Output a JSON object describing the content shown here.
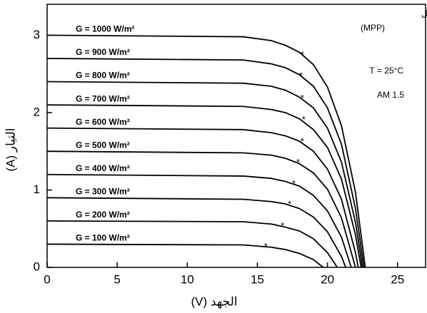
{
  "chart_data": {
    "type": "line",
    "x_label": "الجهد (V)",
    "y_label": "التيار (A)",
    "xlim": [
      0,
      27
    ],
    "ylim": [
      0,
      3.4
    ],
    "xticks": [
      0,
      5,
      10,
      15,
      20,
      25
    ],
    "yticks": [
      0,
      1,
      2,
      3
    ],
    "color": "#000000",
    "annotations": [
      "* نقاط القدرة القصوى للتشغيل",
      "(MPP)",
      "T = 25°C",
      "AM 1.5"
    ],
    "series": [
      {
        "name": "G = 1000 W/m²",
        "x": [
          0,
          14,
          16,
          17,
          18,
          19,
          20,
          21,
          22,
          22.7
        ],
        "values": [
          3,
          2.98,
          2.93,
          2.87,
          2.78,
          2.62,
          2.33,
          1.83,
          0.97,
          0
        ],
        "mpp_x": 18.2,
        "mpp_y": 2.75
      },
      {
        "name": "G = 900 W/m²",
        "x": [
          0,
          14,
          16,
          17,
          18,
          19,
          20,
          21,
          22,
          22.6
        ],
        "values": [
          2.7,
          2.68,
          2.63,
          2.58,
          2.49,
          2.34,
          2.06,
          1.59,
          0.76,
          0
        ],
        "mpp_x": 18.1,
        "mpp_y": 2.48
      },
      {
        "name": "G = 800 W/m²",
        "x": [
          0,
          14,
          16,
          17,
          18,
          19,
          20,
          21,
          22,
          22.5
        ],
        "values": [
          2.4,
          2.38,
          2.34,
          2.29,
          2.2,
          2.06,
          1.8,
          1.36,
          0.58,
          0
        ],
        "mpp_x": 18.2,
        "mpp_y": 2.19
      },
      {
        "name": "G = 700 W/m²",
        "x": [
          0,
          14,
          16,
          17,
          18,
          19,
          20,
          21,
          22,
          22.4
        ],
        "values": [
          2.1,
          2.08,
          2.04,
          2,
          1.92,
          1.78,
          1.55,
          1.14,
          0.42,
          0
        ],
        "mpp_x": 18.3,
        "mpp_y": 1.91
      },
      {
        "name": "G = 600 W/m²",
        "x": [
          0,
          14,
          16,
          17,
          18,
          19,
          20,
          21,
          22,
          22.2
        ],
        "values": [
          1.8,
          1.78,
          1.74,
          1.7,
          1.63,
          1.5,
          1.27,
          0.88,
          0.19,
          0
        ],
        "mpp_x": 18.2,
        "mpp_y": 1.63
      },
      {
        "name": "G = 500 W/m²",
        "x": [
          0,
          14,
          16,
          17,
          18,
          19,
          20,
          21,
          22
        ],
        "values": [
          1.5,
          1.48,
          1.45,
          1.41,
          1.34,
          1.22,
          1.01,
          0.64,
          0
        ],
        "mpp_x": 17.9,
        "mpp_y": 1.36
      },
      {
        "name": "G = 400 W/m²",
        "x": [
          0,
          14,
          16,
          17,
          18,
          19,
          20,
          21,
          21.7
        ],
        "values": [
          1.2,
          1.18,
          1.15,
          1.11,
          1.05,
          0.93,
          0.73,
          0.39,
          0
        ],
        "mpp_x": 17.6,
        "mpp_y": 1.08
      },
      {
        "name": "G = 300 W/m²",
        "x": [
          0,
          14,
          16,
          17,
          18,
          19,
          20,
          21,
          21.3
        ],
        "values": [
          0.9,
          0.88,
          0.85,
          0.82,
          0.76,
          0.65,
          0.46,
          0.14,
          0
        ],
        "mpp_x": 17.3,
        "mpp_y": 0.82
      },
      {
        "name": "G = 200 W/m²",
        "x": [
          0,
          14,
          16,
          17,
          18,
          19,
          20,
          20.7
        ],
        "values": [
          0.6,
          0.59,
          0.56,
          0.52,
          0.47,
          0.37,
          0.19,
          0
        ],
        "mpp_x": 16.8,
        "mpp_y": 0.54
      },
      {
        "name": "G = 100 W/m²",
        "x": [
          0,
          14,
          16,
          17,
          18,
          19,
          19.7
        ],
        "values": [
          0.3,
          0.29,
          0.26,
          0.23,
          0.18,
          0.1,
          0
        ],
        "mpp_x": 15.6,
        "mpp_y": 0.27
      }
    ]
  }
}
